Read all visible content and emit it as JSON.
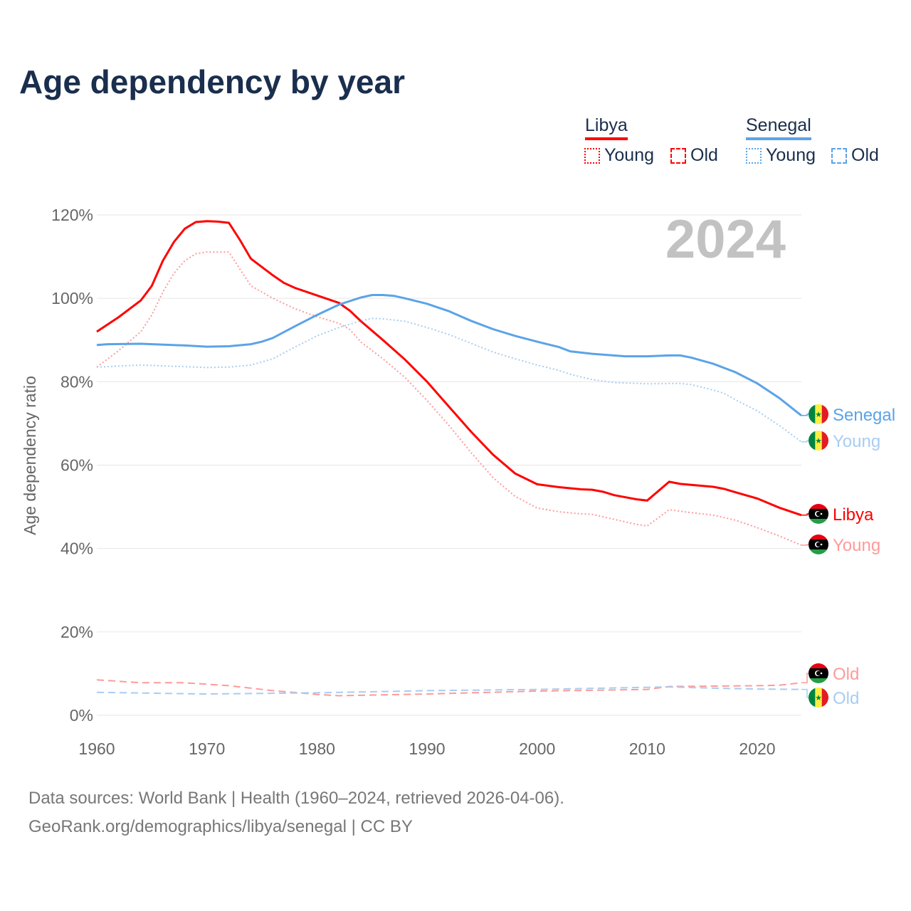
{
  "title": "Age dependency by year",
  "legend": {
    "groups": [
      {
        "name": "Libya",
        "color": "#ff0000",
        "items": [
          "Young",
          "Old"
        ]
      },
      {
        "name": "Senegal",
        "color": "#5ba3e8",
        "items": [
          "Young",
          "Old"
        ]
      }
    ]
  },
  "year_label": "2024",
  "sources": [
    "Data sources: World Bank | Health (1960–2024, retrieved 2026-04-06).",
    "GeoRank.org/demographics/libya/senegal | CC BY"
  ],
  "chart_data": {
    "type": "line",
    "title": "Age dependency by year",
    "xlabel": "",
    "ylabel": "Age dependency ratio",
    "xlim": [
      1960,
      2024
    ],
    "ylim": [
      0,
      120
    ],
    "xticks": [
      "1960",
      "1970",
      "1980",
      "1990",
      "2000",
      "2010",
      "2020"
    ],
    "yticks": [
      "0%",
      "20%",
      "40%",
      "60%",
      "80%",
      "100%",
      "120%"
    ],
    "grid": true,
    "legend_position": "top-right",
    "series": [
      {
        "name": "Libya",
        "end_label": "Libya",
        "country": "libya",
        "style": "solid",
        "color": "#ff0000",
        "points": [
          [
            1960,
            92
          ],
          [
            1962,
            95.5
          ],
          [
            1964,
            99.5
          ],
          [
            1965,
            103
          ],
          [
            1966,
            109
          ],
          [
            1967,
            113.5
          ],
          [
            1968,
            116.7
          ],
          [
            1969,
            118.3
          ],
          [
            1970,
            118.5
          ],
          [
            1971,
            118.4
          ],
          [
            1972,
            118.1
          ],
          [
            1973,
            114
          ],
          [
            1974,
            109.5
          ],
          [
            1975,
            107.5
          ],
          [
            1976,
            105.5
          ],
          [
            1977,
            103.7
          ],
          [
            1978,
            102.5
          ],
          [
            1980,
            100.7
          ],
          [
            1982,
            98.9
          ],
          [
            1983,
            97
          ],
          [
            1984,
            94.5
          ],
          [
            1986,
            90
          ],
          [
            1988,
            85.3
          ],
          [
            1990,
            80
          ],
          [
            1992,
            74
          ],
          [
            1994,
            68
          ],
          [
            1996,
            62.5
          ],
          [
            1998,
            58
          ],
          [
            2000,
            55.4
          ],
          [
            2002,
            54.7
          ],
          [
            2004,
            54.2
          ],
          [
            2005,
            54.1
          ],
          [
            2006,
            53.6
          ],
          [
            2007,
            52.8
          ],
          [
            2009,
            51.8
          ],
          [
            2010,
            51.5
          ],
          [
            2012,
            56
          ],
          [
            2013,
            55.5
          ],
          [
            2016,
            54.8
          ],
          [
            2017,
            54.3
          ],
          [
            2018,
            53.5
          ],
          [
            2020,
            52
          ],
          [
            2022,
            49.8
          ],
          [
            2024,
            48
          ]
        ]
      },
      {
        "name": "Libya Young",
        "end_label": "Young",
        "country": "libya",
        "style": "dotted",
        "color": "#ff9a9a",
        "points": [
          [
            1960,
            83.5
          ],
          [
            1962,
            87.5
          ],
          [
            1964,
            92
          ],
          [
            1965,
            96
          ],
          [
            1966,
            101.5
          ],
          [
            1967,
            106
          ],
          [
            1968,
            109
          ],
          [
            1969,
            110.7
          ],
          [
            1970,
            111.1
          ],
          [
            1972,
            111.1
          ],
          [
            1973,
            107
          ],
          [
            1974,
            103
          ],
          [
            1976,
            100
          ],
          [
            1978,
            97.5
          ],
          [
            1980,
            95.6
          ],
          [
            1982,
            94
          ],
          [
            1983,
            92.5
          ],
          [
            1984,
            89.5
          ],
          [
            1986,
            85.5
          ],
          [
            1988,
            81
          ],
          [
            1990,
            75.5
          ],
          [
            1992,
            69.5
          ],
          [
            1994,
            63
          ],
          [
            1996,
            57
          ],
          [
            1998,
            52.5
          ],
          [
            2000,
            49.7
          ],
          [
            2002,
            48.8
          ],
          [
            2004,
            48.3
          ],
          [
            2005,
            48.2
          ],
          [
            2007,
            47
          ],
          [
            2009,
            45.8
          ],
          [
            2010,
            45.4
          ],
          [
            2012,
            49.3
          ],
          [
            2014,
            48.6
          ],
          [
            2016,
            48
          ],
          [
            2018,
            46.8
          ],
          [
            2020,
            45
          ],
          [
            2022,
            43
          ],
          [
            2024,
            40.8
          ]
        ]
      },
      {
        "name": "Libya Old",
        "end_label": "Old",
        "country": "libya",
        "style": "dashed",
        "color": "#ff9a9a",
        "points": [
          [
            1960,
            8.5
          ],
          [
            1964,
            7.8
          ],
          [
            1968,
            7.8
          ],
          [
            1972,
            7.1
          ],
          [
            1976,
            5.9
          ],
          [
            1980,
            5
          ],
          [
            1982,
            4.7
          ],
          [
            1986,
            4.9
          ],
          [
            1990,
            5.1
          ],
          [
            2000,
            5.8
          ],
          [
            2010,
            6.2
          ],
          [
            2012,
            6.9
          ],
          [
            2016,
            7
          ],
          [
            2020,
            7.1
          ],
          [
            2022,
            7.2
          ],
          [
            2024,
            7.8
          ]
        ]
      },
      {
        "name": "Senegal",
        "end_label": "Senegal",
        "country": "senegal",
        "style": "solid",
        "color": "#5ba3e8",
        "points": [
          [
            1960,
            88.8
          ],
          [
            1961,
            89
          ],
          [
            1964,
            89.1
          ],
          [
            1968,
            88.7
          ],
          [
            1970,
            88.4
          ],
          [
            1972,
            88.5
          ],
          [
            1974,
            89
          ],
          [
            1975,
            89.6
          ],
          [
            1976,
            90.5
          ],
          [
            1978,
            93.3
          ],
          [
            1980,
            96
          ],
          [
            1982,
            98.5
          ],
          [
            1984,
            100.2
          ],
          [
            1985,
            100.8
          ],
          [
            1986,
            100.8
          ],
          [
            1987,
            100.6
          ],
          [
            1988,
            100
          ],
          [
            1990,
            98.7
          ],
          [
            1992,
            96.9
          ],
          [
            1994,
            94.6
          ],
          [
            1996,
            92.6
          ],
          [
            1998,
            91
          ],
          [
            2000,
            89.6
          ],
          [
            2002,
            88.3
          ],
          [
            2003,
            87.3
          ],
          [
            2005,
            86.7
          ],
          [
            2008,
            86.1
          ],
          [
            2010,
            86.1
          ],
          [
            2012,
            86.3
          ],
          [
            2013,
            86.3
          ],
          [
            2014,
            85.8
          ],
          [
            2016,
            84.3
          ],
          [
            2017,
            83.3
          ],
          [
            2018,
            82.3
          ],
          [
            2020,
            79.6
          ],
          [
            2022,
            76.1
          ],
          [
            2024,
            71.9
          ]
        ]
      },
      {
        "name": "Senegal Young",
        "end_label": "Young",
        "country": "senegal",
        "style": "dotted",
        "color": "#a8cdf2",
        "points": [
          [
            1960,
            83.5
          ],
          [
            1964,
            84
          ],
          [
            1968,
            83.6
          ],
          [
            1970,
            83.4
          ],
          [
            1972,
            83.5
          ],
          [
            1974,
            84
          ],
          [
            1976,
            85.5
          ],
          [
            1978,
            88.3
          ],
          [
            1980,
            91
          ],
          [
            1982,
            93
          ],
          [
            1984,
            94.6
          ],
          [
            1985,
            95.2
          ],
          [
            1986,
            95.1
          ],
          [
            1988,
            94.5
          ],
          [
            1990,
            93
          ],
          [
            1992,
            91.3
          ],
          [
            1994,
            89.2
          ],
          [
            1996,
            87.1
          ],
          [
            1998,
            85.5
          ],
          [
            2000,
            84
          ],
          [
            2002,
            82.7
          ],
          [
            2003,
            81.8
          ],
          [
            2005,
            80.5
          ],
          [
            2007,
            79.8
          ],
          [
            2010,
            79.5
          ],
          [
            2013,
            79.6
          ],
          [
            2014,
            79.3
          ],
          [
            2016,
            78
          ],
          [
            2017,
            77.2
          ],
          [
            2018,
            75.7
          ],
          [
            2020,
            73
          ],
          [
            2022,
            69.5
          ],
          [
            2024,
            65.6
          ]
        ]
      },
      {
        "name": "Senegal Old",
        "end_label": "Old",
        "country": "senegal",
        "style": "dashed",
        "color": "#a8cdf2",
        "points": [
          [
            1960,
            5.5
          ],
          [
            1970,
            5.1
          ],
          [
            1980,
            5.4
          ],
          [
            1990,
            5.9
          ],
          [
            2000,
            6.2
          ],
          [
            2010,
            6.7
          ],
          [
            2012,
            6.8
          ],
          [
            2016,
            6.5
          ],
          [
            2020,
            6.3
          ],
          [
            2024,
            6.2
          ]
        ]
      }
    ]
  }
}
